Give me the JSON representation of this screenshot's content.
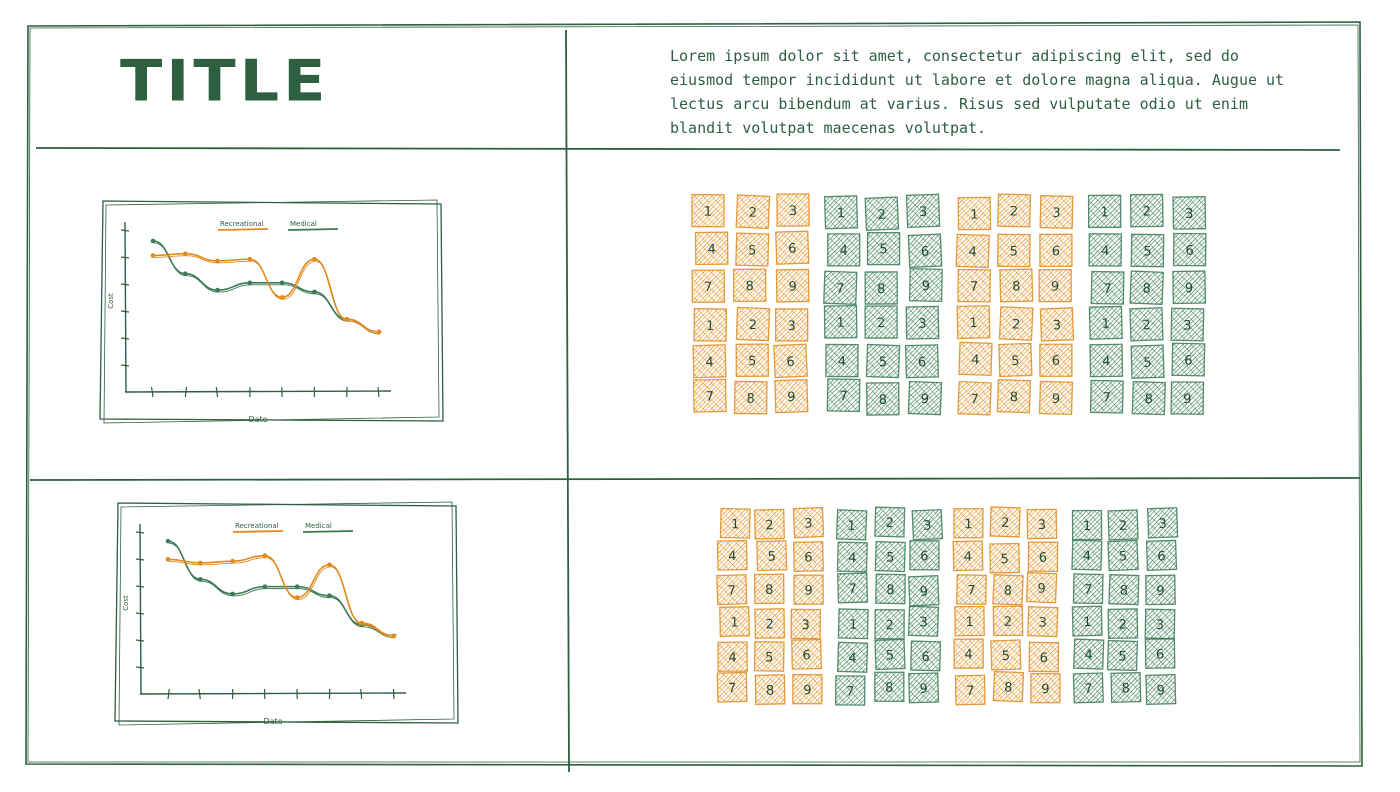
{
  "header": {
    "title": "TITLE",
    "description": "Lorem ipsum dolor sit amet, consectetur adipiscing elit, sed do eiusmod tempor incididunt ut labore et dolore magna aliqua. Augue ut lectus arcu bibendum at varius. Risus sed vulputate odio ut enim blandit volutpat maecenas volutpat."
  },
  "colors": {
    "ink": "#2d5f40",
    "orange": "#e08a1e",
    "green": "#3a7a55"
  },
  "chart_data": [
    {
      "type": "line",
      "xlabel": "Date",
      "ylabel": "Cost",
      "series": [
        {
          "name": "Recreational",
          "color": "#e08a1e",
          "values": [
            7.5,
            7.6,
            7.2,
            7.3,
            5.2,
            7.3,
            4.0,
            3.3
          ]
        },
        {
          "name": "Medical",
          "color": "#3a7a55",
          "values": [
            8.3,
            6.5,
            5.6,
            6.0,
            6.0,
            5.5,
            4.0,
            3.3
          ]
        }
      ],
      "x": [
        1,
        2,
        3,
        4,
        5,
        6,
        7,
        8
      ],
      "ylim": [
        0,
        10
      ],
      "legend": "top-center",
      "grid": false
    },
    {
      "type": "line",
      "xlabel": "Date",
      "ylabel": "Cost",
      "series": [
        {
          "name": "Recreational",
          "color": "#e08a1e",
          "values": [
            7.4,
            7.2,
            7.3,
            7.6,
            5.3,
            7.1,
            3.9,
            3.2
          ]
        },
        {
          "name": "Medical",
          "color": "#3a7a55",
          "values": [
            8.4,
            6.3,
            5.5,
            5.9,
            5.9,
            5.4,
            3.8,
            3.2
          ]
        }
      ],
      "x": [
        1,
        2,
        3,
        4,
        5,
        6,
        7,
        8
      ],
      "ylim": [
        0,
        10
      ],
      "legend": "top-center",
      "grid": false
    }
  ],
  "tile_grids": [
    {
      "groups": [
        "orange",
        "green",
        "orange",
        "green"
      ],
      "numbers": [
        "1",
        "2",
        "3",
        "4",
        "5",
        "6",
        "7",
        "8",
        "9",
        "1",
        "2",
        "3",
        "4",
        "5",
        "6",
        "7",
        "8",
        "9"
      ]
    },
    {
      "groups": [
        "orange",
        "green",
        "orange",
        "green"
      ],
      "numbers": [
        "1",
        "2",
        "3",
        "4",
        "5",
        "6",
        "7",
        "8",
        "9",
        "1",
        "2",
        "3",
        "4",
        "5",
        "6",
        "7",
        "8",
        "9"
      ]
    }
  ]
}
